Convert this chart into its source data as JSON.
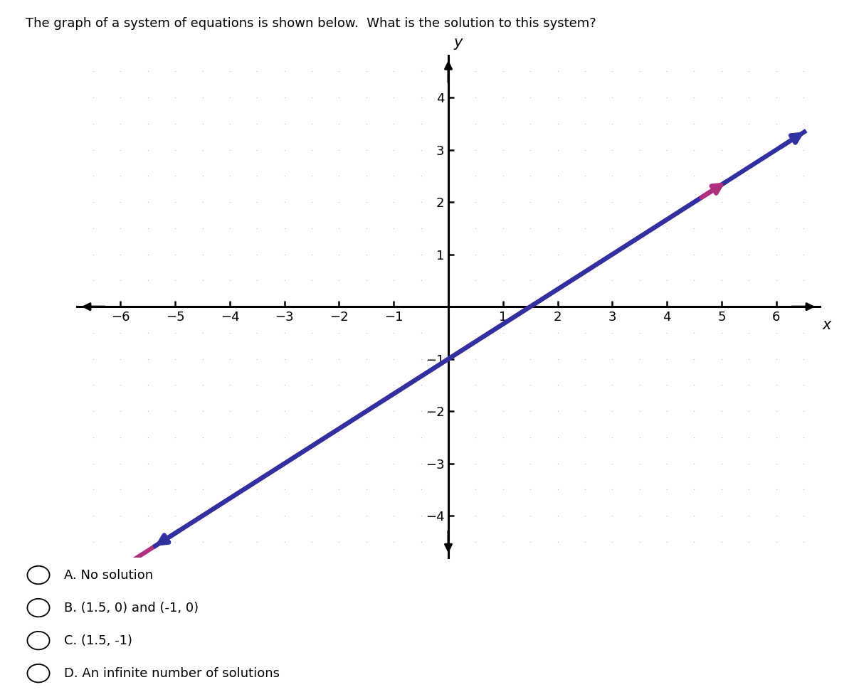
{
  "title": "The graph of a system of equations is shown below.  What is the solution to this system?",
  "title_fontsize": 13,
  "xlabel": "x",
  "ylabel": "y",
  "xlim": [
    -6.8,
    6.8
  ],
  "ylim": [
    -4.8,
    4.8
  ],
  "xticks": [
    -6,
    -5,
    -4,
    -3,
    -2,
    -1,
    1,
    2,
    3,
    4,
    5,
    6
  ],
  "yticks": [
    -4,
    -3,
    -2,
    -1,
    1,
    2,
    3,
    4
  ],
  "background_color": "#ffffff",
  "grid_dot_color": "#b0b0b0",
  "axis_color": "#000000",
  "line1_color": "#b03080",
  "line2_color": "#3030a0",
  "slope": 0.6667,
  "intercept": -1.0,
  "line1_x_start": -6.3,
  "line1_x_end": 5.1,
  "line2_x_start": -5.4,
  "line2_x_end": 6.55,
  "line_lw": 4.5,
  "arrow_scale": 22,
  "choices": [
    "A. No solution",
    "B. (1.5, 0) and (-1, 0)",
    "C. (1.5, -1)",
    "D. An infinite number of solutions"
  ],
  "choice_fontsize": 13
}
